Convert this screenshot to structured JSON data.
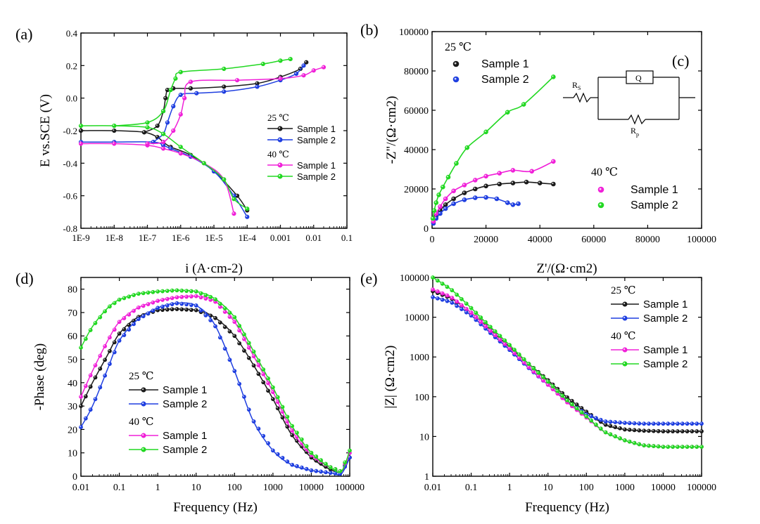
{
  "panel_labels": [
    "(a)",
    "(b)",
    "(c)",
    "(d)",
    "(e)"
  ],
  "colors": {
    "black": "#1a1a1a",
    "blue": "#1f3fe0",
    "magenta": "#f020d8",
    "green": "#22d822"
  },
  "chart_data": [
    {
      "id": "a",
      "type": "line",
      "xscale": "log",
      "xlim": [
        1e-09,
        0.1
      ],
      "ylim": [
        -0.8,
        0.4
      ],
      "xticks": [
        "1E-9",
        "1E-8",
        "1E-7",
        "1E-6",
        "1E-5",
        "1E-4",
        "0.001",
        "0.01",
        "0.1"
      ],
      "yticks": [
        "-0.8",
        "-0.6",
        "-0.4",
        "-0.2",
        "0.0",
        "0.2",
        "0.4"
      ],
      "xlabel": "i (A·cm-2)",
      "ylabel": "E vs.SCE (V)",
      "legend": {
        "placement": "right",
        "groups": [
          {
            "title": "25 ℃",
            "entries": [
              "Sample 1",
              "Sample 2"
            ]
          },
          {
            "title": "40 ℃",
            "entries": [
              "Sample 1",
              "Sample 2"
            ]
          }
        ]
      },
      "series": [
        {
          "name": "Sample 1",
          "group": "25 ℃",
          "color": "#1a1a1a",
          "markers": true,
          "x": [
            1e-09,
            1e-08,
            8e-08,
            2e-07,
            3e-07,
            5e-07,
            2e-06,
            1e-05,
            5e-05,
            0.0001
          ],
          "y": [
            -0.2,
            -0.2,
            -0.21,
            -0.24,
            -0.27,
            -0.3,
            -0.35,
            -0.45,
            -0.6,
            -0.69
          ],
          "anodic_x": [
            8e-08,
            2e-07,
            3e-07,
            3.5e-07,
            4e-07,
            6e-07,
            2e-06,
            2e-05,
            0.0002,
            0.001,
            0.004,
            0.006
          ],
          "anodic_y": [
            -0.21,
            -0.17,
            -0.08,
            0.0,
            0.05,
            0.06,
            0.06,
            0.07,
            0.09,
            0.13,
            0.18,
            0.22
          ]
        },
        {
          "name": "Sample 2",
          "group": "25 ℃",
          "color": "#1f3fe0",
          "markers": true,
          "x": [
            1e-09,
            1e-08,
            1.5e-07,
            3e-07,
            5e-07,
            2e-06,
            1e-05,
            4e-05,
            0.0001
          ],
          "y": [
            -0.27,
            -0.27,
            -0.27,
            -0.29,
            -0.31,
            -0.36,
            -0.45,
            -0.6,
            -0.73
          ],
          "anodic_x": [
            1.5e-07,
            3e-07,
            4e-07,
            6e-07,
            1e-06,
            3e-06,
            2e-05,
            0.0002,
            0.001,
            0.003,
            0.005
          ],
          "anodic_y": [
            -0.27,
            -0.22,
            -0.15,
            -0.05,
            0.02,
            0.03,
            0.04,
            0.07,
            0.11,
            0.15,
            0.2
          ]
        },
        {
          "name": "Sample 1",
          "group": "40 ℃",
          "color": "#f020d8",
          "markers": true,
          "x": [
            1e-09,
            1e-08,
            1e-07,
            3e-07,
            1e-06,
            5e-06,
            2e-05,
            4e-05
          ],
          "y": [
            -0.28,
            -0.28,
            -0.29,
            -0.31,
            -0.34,
            -0.4,
            -0.5,
            -0.71
          ],
          "anodic_x": [
            1e-07,
            3e-07,
            6e-07,
            1e-06,
            1.3e-06,
            2e-06,
            5e-05,
            0.001,
            0.005,
            0.01,
            0.02
          ],
          "anodic_y": [
            -0.28,
            -0.27,
            -0.2,
            -0.1,
            0.0,
            0.1,
            0.11,
            0.12,
            0.14,
            0.17,
            0.19
          ]
        },
        {
          "name": "Sample 2",
          "group": "40 ℃",
          "color": "#22d822",
          "markers": true,
          "x": [
            1e-09,
            1e-08,
            1e-07,
            3e-07,
            1e-06,
            5e-06,
            2e-05,
            4e-05,
            0.0001
          ],
          "y": [
            -0.17,
            -0.17,
            -0.18,
            -0.22,
            -0.3,
            -0.4,
            -0.5,
            -0.62,
            -0.68
          ],
          "anodic_x": [
            1e-08,
            1e-07,
            3e-07,
            5e-07,
            7e-07,
            1e-06,
            2e-05,
            0.0003,
            0.001,
            0.002
          ],
          "anodic_y": [
            -0.17,
            -0.15,
            -0.08,
            0.05,
            0.12,
            0.16,
            0.18,
            0.21,
            0.23,
            0.24
          ]
        }
      ]
    },
    {
      "id": "b",
      "type": "scatter",
      "xlim": [
        0,
        100000
      ],
      "ylim": [
        0,
        100000
      ],
      "xticks": [
        "0",
        "20000",
        "40000",
        "60000",
        "80000",
        "100000"
      ],
      "yticks": [
        "0",
        "20000",
        "40000",
        "60000",
        "80000",
        "100000"
      ],
      "xlabel": "Z'/(Ω·cm2)",
      "ylabel": "-Z\"/(Ω·cm2)",
      "legend": {
        "placement": "top-left and right",
        "groups": [
          {
            "title": "25 ℃",
            "entries": [
              "Sample 1",
              "Sample 2"
            ]
          },
          {
            "title": "40 ℃",
            "entries": [
              "Sample 1",
              "Sample 2"
            ]
          }
        ]
      },
      "series": [
        {
          "name": "Sample 1",
          "group": "25 ℃",
          "color": "#1a1a1a",
          "x": [
            500,
            1500,
            3000,
            5000,
            8000,
            12000,
            16000,
            20000,
            25000,
            30000,
            35000,
            40000,
            45000
          ],
          "y": [
            3000,
            6000,
            9000,
            12000,
            15000,
            18000,
            20000,
            21500,
            22500,
            23000,
            23500,
            23000,
            22500
          ]
        },
        {
          "name": "Sample 2",
          "group": "25 ℃",
          "color": "#1f3fe0",
          "x": [
            500,
            1500,
            3000,
            5000,
            8000,
            12000,
            16000,
            20000,
            24000,
            28000,
            30000,
            32000
          ],
          "y": [
            2500,
            5000,
            7500,
            10000,
            12500,
            14500,
            15500,
            15700,
            15000,
            13000,
            12000,
            12500
          ]
        },
        {
          "name": "Sample 1",
          "group": "40 ℃",
          "color": "#f020d8",
          "x": [
            500,
            1500,
            3000,
            5000,
            8000,
            12000,
            16000,
            20000,
            25000,
            30000,
            37000,
            45000
          ],
          "y": [
            3500,
            7500,
            11000,
            15000,
            19000,
            22000,
            24500,
            26500,
            28000,
            29500,
            29000,
            34000
          ]
        },
        {
          "name": "Sample 2",
          "group": "40 ℃",
          "color": "#22d822",
          "x": [
            300,
            800,
            1500,
            2500,
            4000,
            6000,
            9000,
            13000,
            20000,
            28000,
            34000,
            45000
          ],
          "y": [
            5000,
            9000,
            13000,
            17000,
            21000,
            26000,
            33000,
            41000,
            49000,
            59000,
            63000,
            77000
          ]
        }
      ]
    },
    {
      "id": "c",
      "type": "diagram",
      "labels": {
        "rs_main": "R",
        "rs_sub": "S",
        "q": "Q",
        "rp_main": "R",
        "rp_sub": "p"
      }
    },
    {
      "id": "d",
      "type": "line",
      "xscale": "log",
      "xlim": [
        0.01,
        100000
      ],
      "ylim": [
        0,
        85
      ],
      "xticks": [
        "0.01",
        "0.1",
        "1",
        "10",
        "100",
        "1000",
        "10000",
        "100000"
      ],
      "yticks": [
        "0",
        "10",
        "20",
        "30",
        "40",
        "50",
        "60",
        "70",
        "80"
      ],
      "xlabel": "Frequency (Hz)",
      "ylabel": "-Phase (deg)",
      "legend": {
        "placement": "bottom-left",
        "groups": [
          {
            "title": "25 ℃",
            "entries": [
              "Sample 1",
              "Sample 2"
            ]
          },
          {
            "title": "40 ℃",
            "entries": [
              "Sample 1",
              "Sample 2"
            ]
          }
        ]
      },
      "series": [
        {
          "name": "Sample 1",
          "group": "25 ℃",
          "color": "#1a1a1a",
          "x": [
            0.01,
            0.02,
            0.05,
            0.1,
            0.3,
            1,
            3,
            10,
            30,
            100,
            300,
            1000,
            3000,
            10000,
            30000,
            60000,
            100000
          ],
          "y": [
            30,
            40,
            52,
            61,
            68,
            71,
            71.5,
            71,
            68,
            60,
            48,
            33,
            18,
            8,
            3,
            2,
            8
          ]
        },
        {
          "name": "Sample 2",
          "group": "25 ℃",
          "color": "#1f3fe0",
          "x": [
            0.01,
            0.02,
            0.05,
            0.1,
            0.3,
            1,
            3,
            10,
            30,
            100,
            300,
            1000,
            3000,
            10000,
            30000,
            60000,
            100000
          ],
          "y": [
            21,
            30,
            46,
            58,
            67,
            72,
            74,
            73,
            65,
            45,
            24,
            11,
            5,
            2.5,
            1.5,
            1,
            8
          ]
        },
        {
          "name": "Sample 1",
          "group": "40 ℃",
          "color": "#f020d8",
          "x": [
            0.01,
            0.02,
            0.05,
            0.1,
            0.3,
            1,
            3,
            10,
            30,
            100,
            300,
            1000,
            3000,
            10000,
            30000,
            60000,
            100000
          ],
          "y": [
            34,
            45,
            58,
            66,
            72,
            75,
            76.5,
            77,
            75,
            66,
            52,
            36,
            20,
            9,
            4,
            2,
            10
          ]
        },
        {
          "name": "Sample 2",
          "group": "40 ℃",
          "color": "#22d822",
          "x": [
            0.01,
            0.02,
            0.05,
            0.1,
            0.3,
            1,
            3,
            10,
            30,
            100,
            300,
            1000,
            3000,
            10000,
            30000,
            60000,
            100000
          ],
          "y": [
            55,
            64,
            72,
            75.5,
            78,
            79,
            79.5,
            79,
            76,
            68,
            54,
            38,
            22,
            10,
            4,
            2,
            11
          ]
        }
      ]
    },
    {
      "id": "e",
      "type": "line",
      "xscale": "log",
      "yscale": "log",
      "xlim": [
        0.01,
        100000
      ],
      "ylim": [
        1,
        100000
      ],
      "xticks": [
        "0.01",
        "0.1",
        "1",
        "10",
        "100",
        "1000",
        "10000",
        "100000"
      ],
      "yticks": [
        "1",
        "10",
        "100",
        "1000",
        "10000",
        "100000"
      ],
      "xlabel": "Frequency (Hz)",
      "ylabel": "|Z| (Ω·cm2)",
      "legend": {
        "placement": "right",
        "groups": [
          {
            "title": "25 ℃",
            "entries": [
              "Sample 1",
              "Sample 2"
            ]
          },
          {
            "title": "40 ℃",
            "entries": [
              "Sample 1",
              "Sample 2"
            ]
          }
        ]
      },
      "series": [
        {
          "name": "Sample 1",
          "group": "25 ℃",
          "color": "#1a1a1a",
          "x": [
            0.01,
            0.03,
            0.1,
            0.3,
            1,
            3,
            10,
            30,
            100,
            300,
            1000,
            3000,
            10000,
            100000
          ],
          "y": [
            45000,
            30000,
            13000,
            5000,
            1800,
            700,
            260,
            100,
            42,
            20,
            15,
            14,
            13.5,
            13.5
          ]
        },
        {
          "name": "Sample 2",
          "group": "25 ℃",
          "color": "#1f3fe0",
          "x": [
            0.01,
            0.03,
            0.1,
            0.3,
            1,
            3,
            10,
            30,
            100,
            300,
            1000,
            3000,
            10000,
            100000
          ],
          "y": [
            32000,
            24000,
            11000,
            4200,
            1500,
            550,
            200,
            80,
            36,
            24,
            22,
            21,
            21,
            21
          ]
        },
        {
          "name": "Sample 1",
          "group": "40 ℃",
          "color": "#f020d8",
          "x": [
            0.01,
            0.03,
            0.1,
            0.3,
            1,
            3,
            10,
            30,
            100,
            300,
            1000,
            3000,
            10000,
            100000
          ],
          "y": [
            50000,
            32000,
            13000,
            4800,
            1650,
            580,
            200,
            75,
            30,
            13,
            8,
            6,
            5.5,
            5.5
          ]
        },
        {
          "name": "Sample 2",
          "group": "40 ℃",
          "color": "#22d822",
          "x": [
            0.01,
            0.03,
            0.1,
            0.3,
            1,
            3,
            10,
            30,
            100,
            300,
            1000,
            3000,
            10000,
            100000
          ],
          "y": [
            100000,
            50000,
            17000,
            6000,
            2000,
            700,
            240,
            85,
            32,
            13,
            8,
            6,
            5.5,
            5.5
          ]
        }
      ]
    }
  ]
}
